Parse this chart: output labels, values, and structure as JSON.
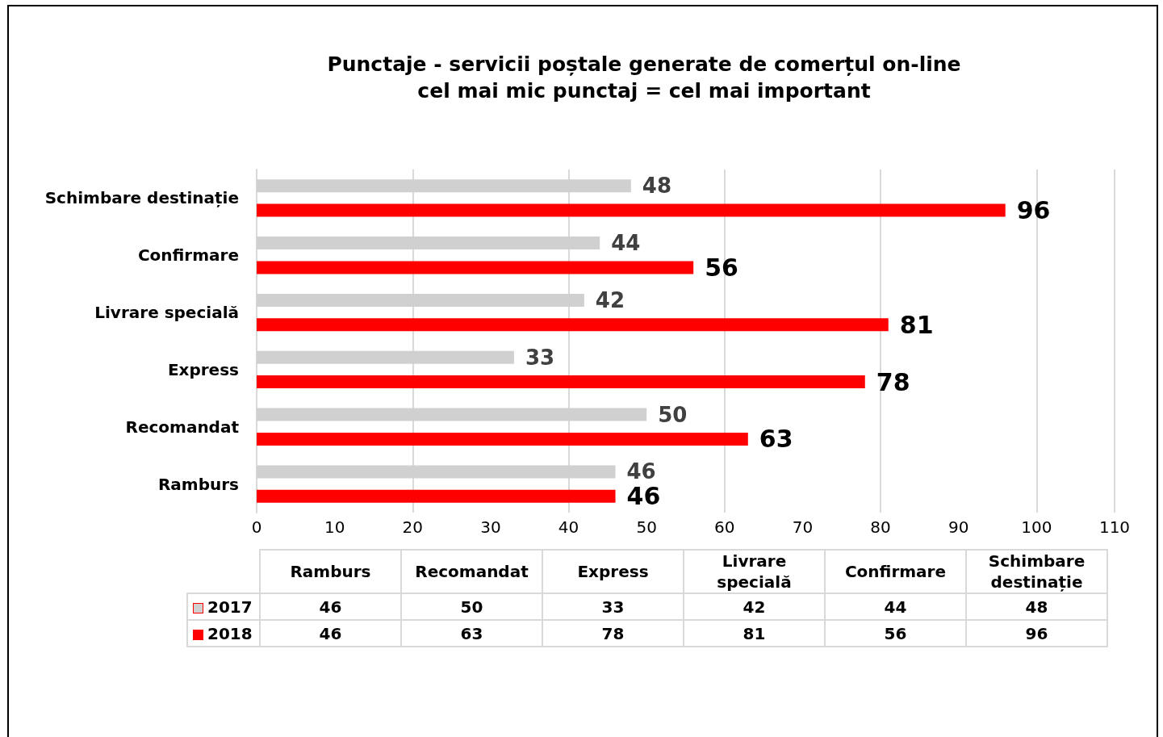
{
  "chart_data": {
    "type": "bar",
    "orientation": "horizontal",
    "title": "Punctaje - servicii poștale generate de comerțul on-line\ncel mai mic punctaj = cel mai important",
    "categories": [
      "Schimbare destinație",
      "Confirmare",
      "Livrare specială",
      "Express",
      "Recomandat",
      "Ramburs"
    ],
    "series": [
      {
        "name": "2017",
        "color": "#d0d0d0",
        "values": [
          48,
          44,
          42,
          33,
          50,
          46
        ],
        "value_labels": [
          "48",
          "44",
          "42",
          "33",
          "50",
          "46"
        ]
      },
      {
        "name": "2018",
        "color": "#ff0000",
        "values": [
          96,
          56,
          81,
          78,
          63,
          46
        ],
        "value_labels": [
          "96",
          "56",
          "81",
          "78",
          "63",
          "46"
        ]
      }
    ],
    "xlim": [
      0,
      110
    ],
    "xticks": [
      0,
      10,
      20,
      30,
      40,
      50,
      60,
      70,
      80,
      90,
      100,
      110
    ],
    "grid": "x",
    "legend": "bottom"
  }
}
